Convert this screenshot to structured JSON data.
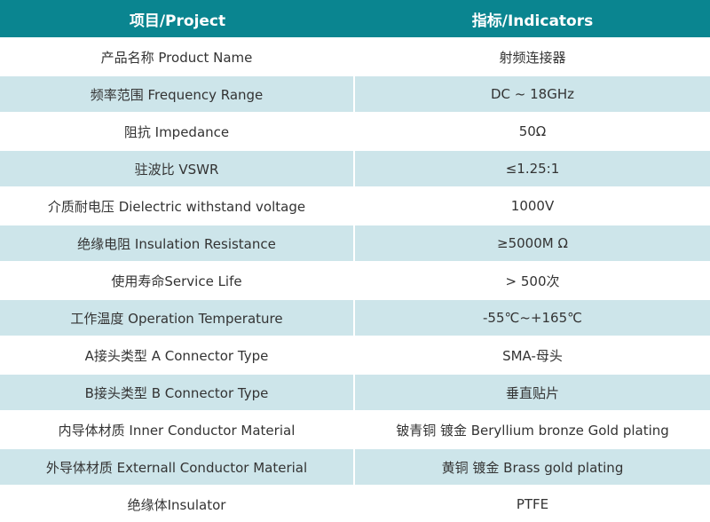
{
  "header": {
    "project": "项目/Project",
    "indicators": "指标/Indicators"
  },
  "colors": {
    "header_bg": "#0a8590",
    "alt_row_bg": "#cde5ea"
  },
  "rows": [
    {
      "project": "产品名称 Product Name",
      "indicator": "射频连接器"
    },
    {
      "project": "频率范围 Frequency Range",
      "indicator": "DC ~ 18GHz"
    },
    {
      "project": "阻抗 Impedance",
      "indicator": "50Ω"
    },
    {
      "project": "驻波比 VSWR",
      "indicator": "≤1.25:1"
    },
    {
      "project": "介质耐电压 Dielectric withstand voltage",
      "indicator": "1000V"
    },
    {
      "project": "绝缘电阻 Insulation Resistance",
      "indicator": "≥5000M Ω"
    },
    {
      "project": "使用寿命Service Life",
      "indicator": "> 500次"
    },
    {
      "project": "工作温度 Operation Temperature",
      "indicator": "-55℃~+165℃"
    },
    {
      "project": "A接头类型 A Connector Type",
      "indicator": "SMA-母头"
    },
    {
      "project": "B接头类型 B Connector Type",
      "indicator": "垂直贴片"
    },
    {
      "project": "内导体材质 Inner Conductor Material",
      "indicator": "铍青铜 镀金 Beryllium bronze Gold plating"
    },
    {
      "project": "外导体材质 Externall Conductor Material",
      "indicator": "黄铜 镀金 Brass gold plating"
    },
    {
      "project": "绝缘体Insulator",
      "indicator": "PTFE"
    }
  ]
}
